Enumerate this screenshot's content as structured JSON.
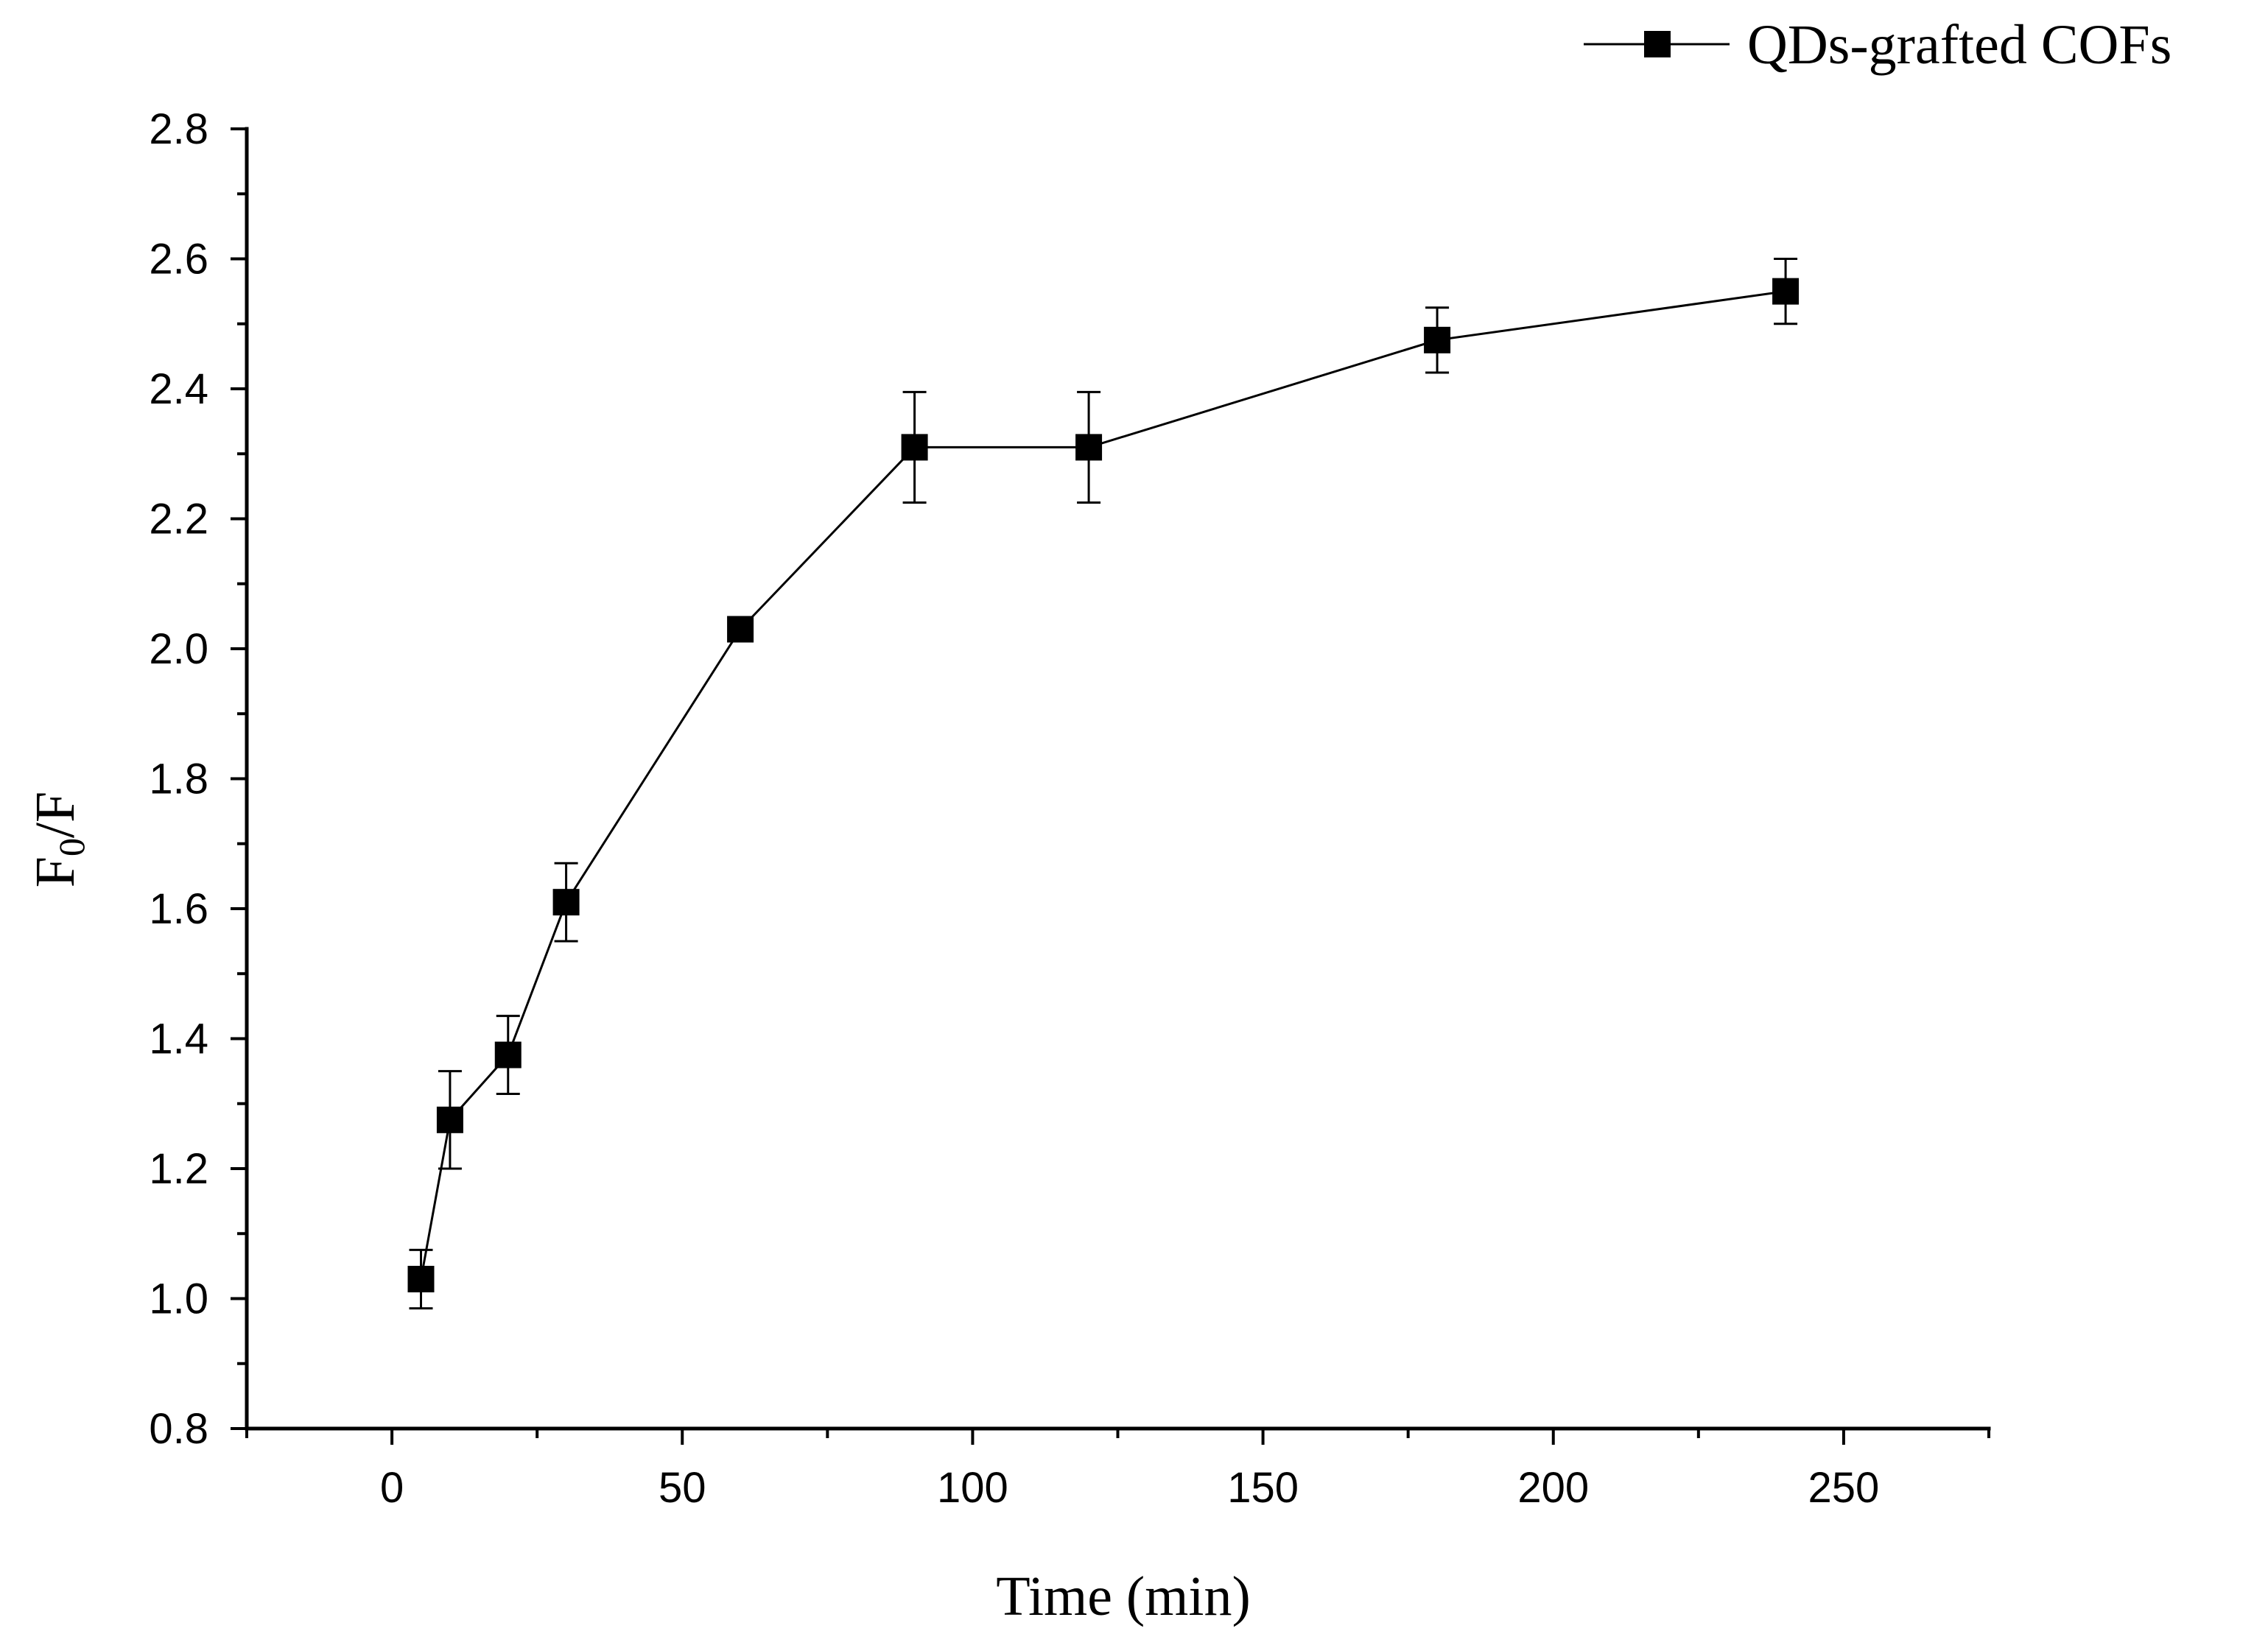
{
  "chart_data": {
    "type": "line",
    "title": "",
    "xlabel": "Time (min)",
    "ylabel": {
      "main": "F",
      "sub": "0",
      "tail": "/F"
    },
    "xlim": [
      -25,
      275
    ],
    "ylim": [
      0.8,
      2.8
    ],
    "xticks": [
      0,
      50,
      100,
      150,
      200,
      250
    ],
    "xtick_labels": [
      "0",
      "50",
      "100",
      "150",
      "200",
      "250"
    ],
    "yticks": [
      0.8,
      1.0,
      1.2,
      1.4,
      1.6,
      1.8,
      2.0,
      2.2,
      2.4,
      2.6,
      2.8
    ],
    "ytick_labels": [
      "0.8",
      "1.0",
      "1.2",
      "1.4",
      "1.6",
      "1.8",
      "2.0",
      "2.2",
      "2.4",
      "2.6",
      "2.8"
    ],
    "legend_position": "top-right",
    "grid": false,
    "series": [
      {
        "name": "QDs-grafted COFs",
        "marker": "square",
        "color": "#000000",
        "x": [
          5,
          10,
          20,
          30,
          60,
          90,
          120,
          180,
          240
        ],
        "y": [
          1.03,
          1.275,
          1.375,
          1.61,
          2.03,
          2.31,
          2.31,
          2.475,
          2.55
        ],
        "err": [
          0.045,
          0.075,
          0.06,
          0.06,
          0.015,
          0.085,
          0.085,
          0.05,
          0.05
        ]
      }
    ]
  }
}
